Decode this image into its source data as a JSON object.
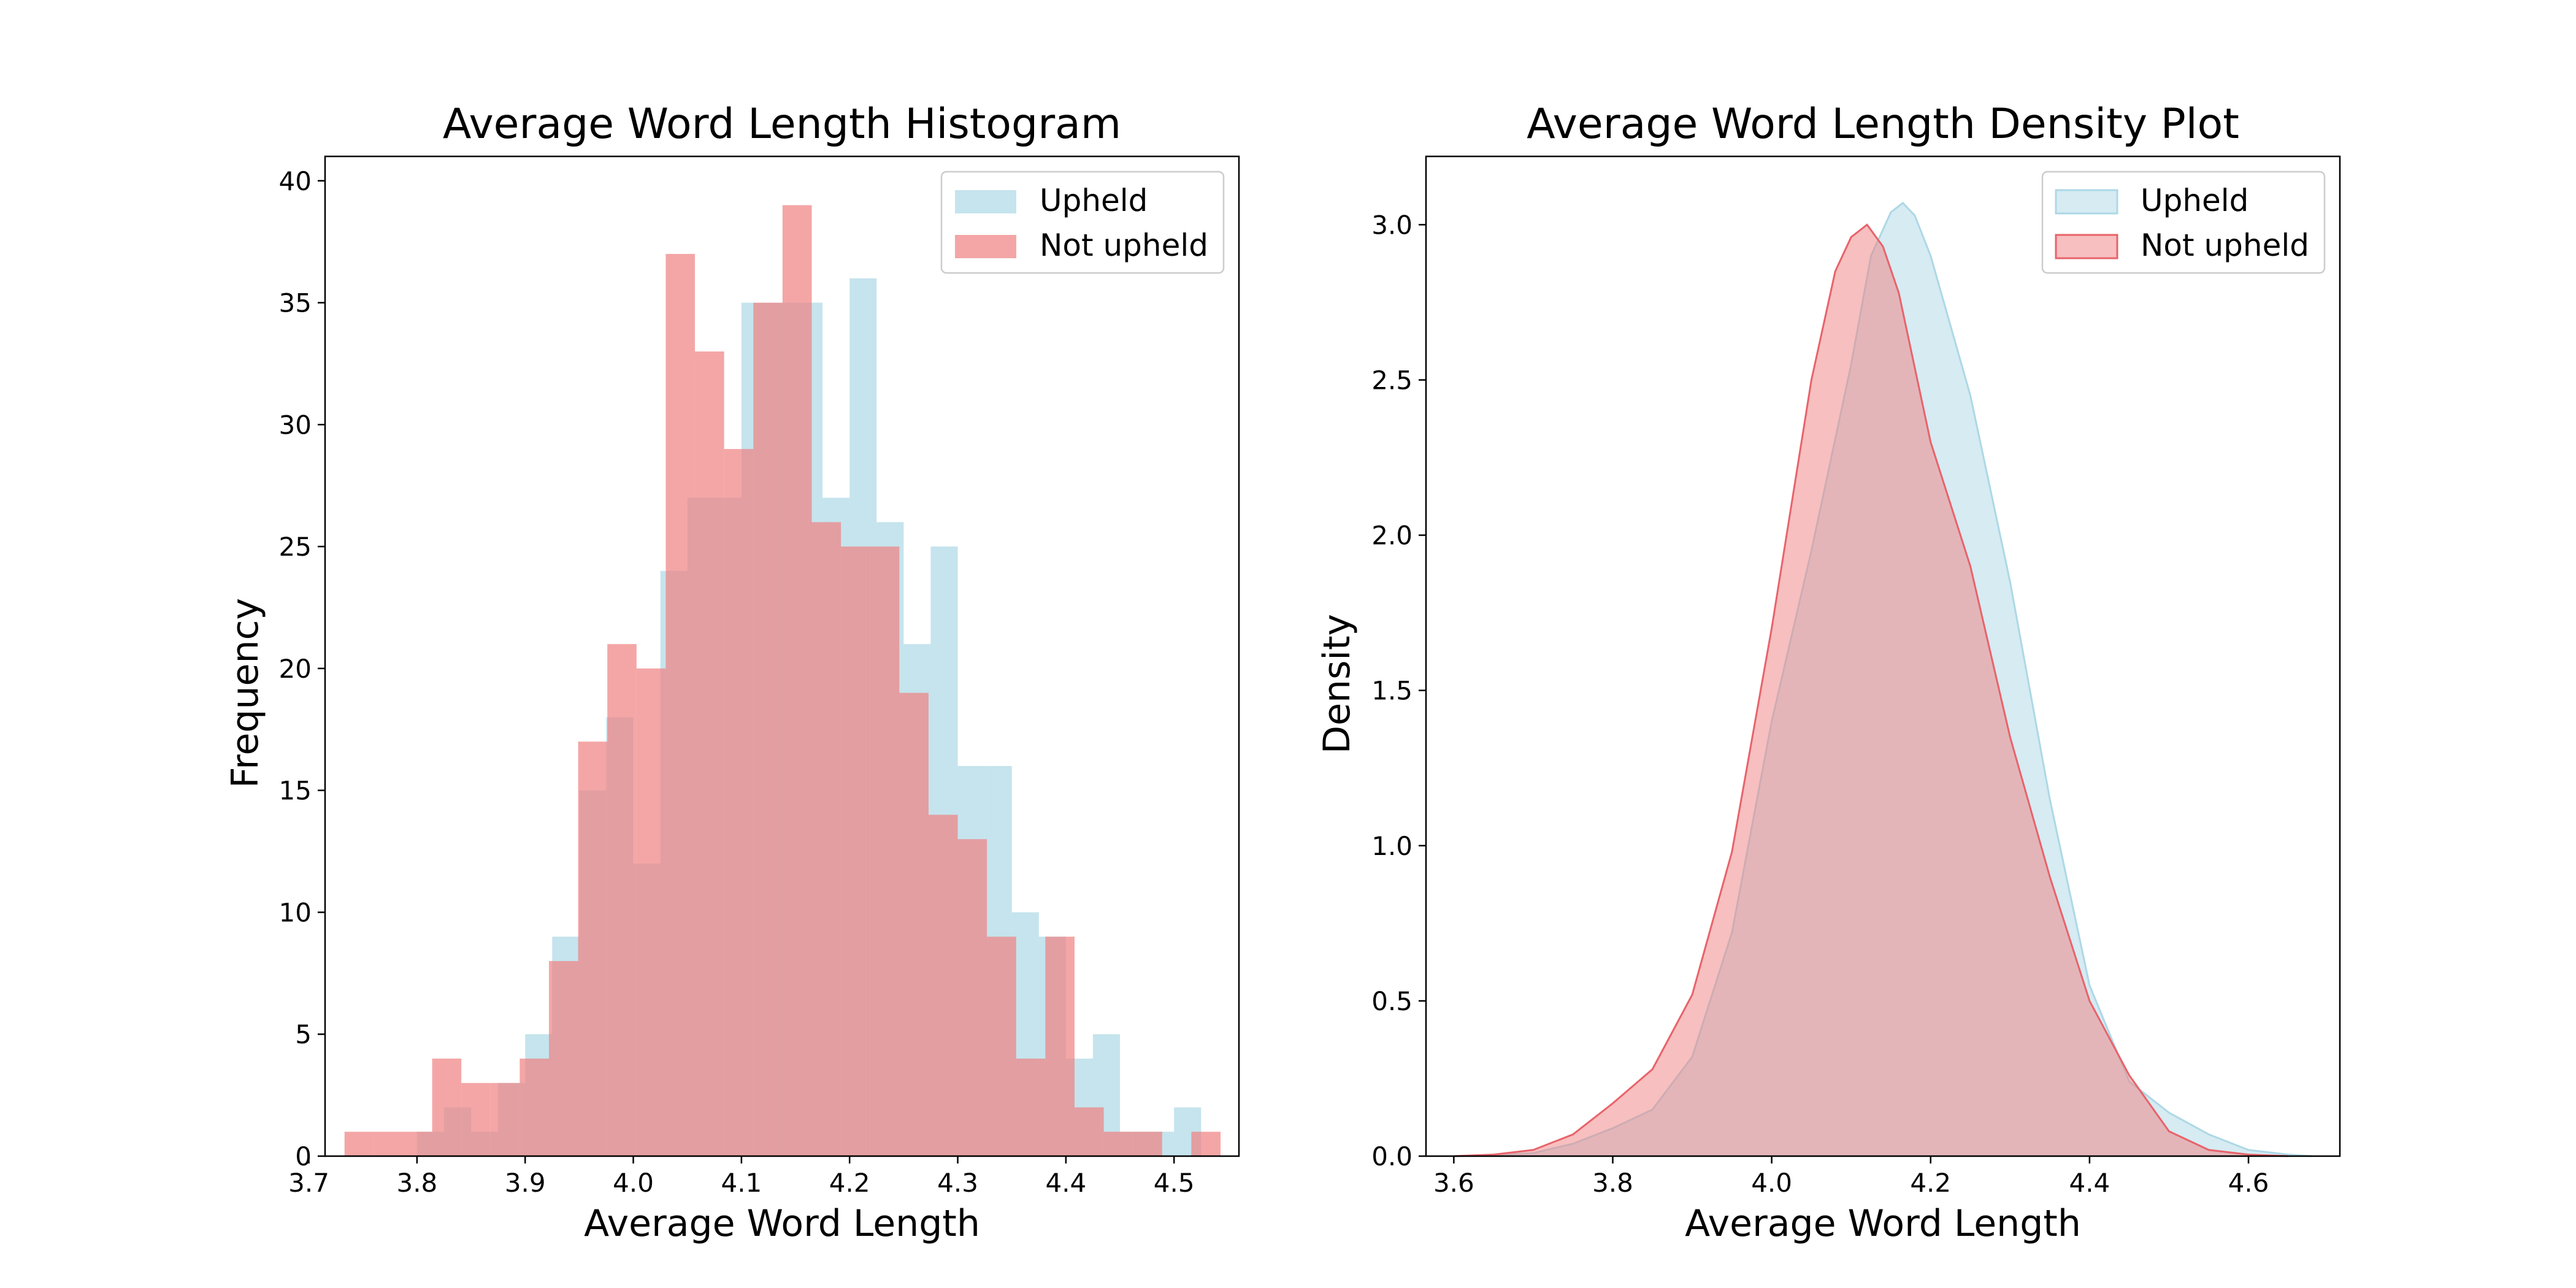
{
  "colors": {
    "upheld": "#ADD8E6",
    "not_upheld": "#F08080",
    "upheld_edge": "#ADD8E6",
    "not_upheld_edge": "#E8636B"
  },
  "chart_data": [
    {
      "type": "histogram",
      "title": "Average Word Length Histogram",
      "xlabel": "Average Word Length",
      "ylabel": "Frequency",
      "xlim": [
        3.715,
        4.56
      ],
      "ylim": [
        0,
        41
      ],
      "xticks": [
        "3.7",
        "3.8",
        "3.9",
        "4.0",
        "4.1",
        "4.2",
        "4.3",
        "4.4",
        "4.5"
      ],
      "yticks": [
        "0",
        "5",
        "10",
        "15",
        "20",
        "25",
        "30",
        "35",
        "40"
      ],
      "legend": {
        "placement": "top-right",
        "entries": [
          "Upheld",
          "Not upheld"
        ]
      },
      "series": [
        {
          "name": "Upheld",
          "color_key": "upheld",
          "bins": [
            [
              3.8,
              3.825,
              1
            ],
            [
              3.825,
              3.85,
              2
            ],
            [
              3.85,
              3.875,
              1
            ],
            [
              3.875,
              3.9,
              3
            ],
            [
              3.9,
              3.925,
              5
            ],
            [
              3.925,
              3.95,
              9
            ],
            [
              3.95,
              3.975,
              15
            ],
            [
              3.975,
              4.0,
              18
            ],
            [
              4.0,
              4.025,
              12
            ],
            [
              4.025,
              4.05,
              24
            ],
            [
              4.05,
              4.075,
              27
            ],
            [
              4.075,
              4.1,
              27
            ],
            [
              4.1,
              4.125,
              35
            ],
            [
              4.125,
              4.15,
              35
            ],
            [
              4.15,
              4.175,
              35
            ],
            [
              4.175,
              4.2,
              27
            ],
            [
              4.2,
              4.225,
              36
            ],
            [
              4.225,
              4.25,
              26
            ],
            [
              4.25,
              4.275,
              21
            ],
            [
              4.275,
              4.3,
              25
            ],
            [
              4.3,
              4.325,
              16
            ],
            [
              4.325,
              4.35,
              16
            ],
            [
              4.35,
              4.375,
              10
            ],
            [
              4.375,
              4.4,
              9
            ],
            [
              4.4,
              4.425,
              4
            ],
            [
              4.425,
              4.45,
              5
            ],
            [
              4.45,
              4.475,
              1
            ],
            [
              4.475,
              4.5,
              1
            ],
            [
              4.5,
              4.525,
              2
            ]
          ]
        },
        {
          "name": "Not upheld",
          "color_key": "not_upheld",
          "bins": [
            [
              3.733,
              3.76,
              1
            ],
            [
              3.76,
              3.787,
              1
            ],
            [
              3.787,
              3.814,
              1
            ],
            [
              3.814,
              3.841,
              4
            ],
            [
              3.841,
              3.868,
              3
            ],
            [
              3.868,
              3.895,
              3
            ],
            [
              3.895,
              3.922,
              4
            ],
            [
              3.922,
              3.949,
              8
            ],
            [
              3.949,
              3.976,
              17
            ],
            [
              3.976,
              4.003,
              21
            ],
            [
              4.003,
              4.03,
              20
            ],
            [
              4.03,
              4.057,
              37
            ],
            [
              4.057,
              4.084,
              33
            ],
            [
              4.084,
              4.111,
              29
            ],
            [
              4.111,
              4.138,
              35
            ],
            [
              4.138,
              4.165,
              39
            ],
            [
              4.165,
              4.192,
              26
            ],
            [
              4.192,
              4.219,
              25
            ],
            [
              4.219,
              4.246,
              25
            ],
            [
              4.246,
              4.273,
              19
            ],
            [
              4.273,
              4.3,
              14
            ],
            [
              4.3,
              4.327,
              13
            ],
            [
              4.327,
              4.354,
              9
            ],
            [
              4.354,
              4.381,
              4
            ],
            [
              4.381,
              4.408,
              9
            ],
            [
              4.408,
              4.435,
              2
            ],
            [
              4.435,
              4.462,
              1
            ],
            [
              4.462,
              4.489,
              1
            ],
            [
              4.489,
              4.516,
              0
            ],
            [
              4.516,
              4.543,
              1
            ]
          ]
        }
      ]
    },
    {
      "type": "area",
      "title": "Average Word Length Density Plot",
      "xlabel": "Average Word Length",
      "ylabel": "Density",
      "xlim": [
        3.565,
        4.715
      ],
      "ylim": [
        0,
        3.22
      ],
      "xticks": [
        "3.6",
        "3.8",
        "4.0",
        "4.2",
        "4.4",
        "4.6"
      ],
      "yticks": [
        "0.0",
        "0.5",
        "1.0",
        "1.5",
        "2.0",
        "2.5",
        "3.0"
      ],
      "legend": {
        "placement": "top-right",
        "entries": [
          "Upheld",
          "Not upheld"
        ]
      },
      "series": [
        {
          "name": "Upheld",
          "color_key": "upheld",
          "x": [
            3.6,
            3.65,
            3.7,
            3.75,
            3.8,
            3.85,
            3.9,
            3.95,
            4.0,
            4.05,
            4.1,
            4.125,
            4.15,
            4.165,
            4.18,
            4.2,
            4.25,
            4.3,
            4.35,
            4.4,
            4.45,
            4.5,
            4.55,
            4.6,
            4.65,
            4.68
          ],
          "y": [
            0.0,
            0.003,
            0.01,
            0.04,
            0.09,
            0.15,
            0.32,
            0.72,
            1.4,
            1.95,
            2.55,
            2.9,
            3.04,
            3.07,
            3.03,
            2.9,
            2.45,
            1.85,
            1.15,
            0.55,
            0.24,
            0.14,
            0.07,
            0.02,
            0.005,
            0.0
          ]
        },
        {
          "name": "Not upheld",
          "color_key": "not_upheld",
          "x": [
            3.6,
            3.65,
            3.7,
            3.75,
            3.8,
            3.85,
            3.9,
            3.95,
            4.0,
            4.05,
            4.08,
            4.1,
            4.12,
            4.14,
            4.16,
            4.2,
            4.25,
            4.3,
            4.35,
            4.4,
            4.45,
            4.5,
            4.55,
            4.6,
            4.65
          ],
          "y": [
            0.0,
            0.005,
            0.02,
            0.07,
            0.17,
            0.28,
            0.52,
            0.98,
            1.7,
            2.5,
            2.85,
            2.96,
            3.0,
            2.93,
            2.78,
            2.3,
            1.9,
            1.35,
            0.9,
            0.5,
            0.26,
            0.08,
            0.02,
            0.005,
            0.0
          ]
        }
      ]
    }
  ]
}
